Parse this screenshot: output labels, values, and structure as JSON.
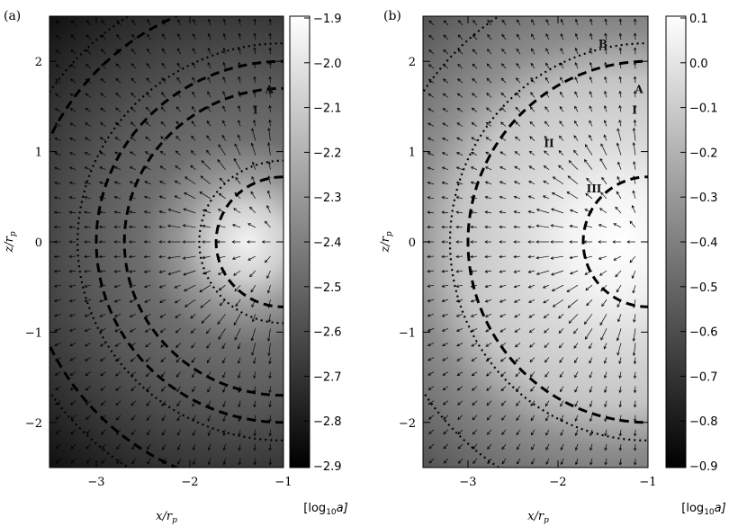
{
  "chart_data": [
    {
      "type": "heatmap",
      "panel_label": "(a)",
      "xlabel": "x/r",
      "xlabel_sub": "p",
      "ylabel": "z/r",
      "ylabel_sub": "p",
      "xlim": [
        -3.5,
        -1
      ],
      "ylim": [
        -2.5,
        2.5
      ],
      "xticks": [
        -3,
        -2,
        -1
      ],
      "yticks": [
        -2,
        -1,
        0,
        1,
        2
      ],
      "colorbar": {
        "label": "[log",
        "label_sub": "10",
        "label_tail": "a]",
        "min": -2.9,
        "max": -1.9,
        "ticks": [
          "-1.9",
          "-2.0",
          "-2.1",
          "-2.2",
          "-2.3",
          "-2.4",
          "-2.5",
          "-2.6",
          "-2.7",
          "-2.8",
          "-2.9"
        ]
      },
      "region_labels": [
        {
          "text": "A",
          "x": -1.15,
          "z": 1.65
        },
        {
          "text": "I",
          "x": -1.3,
          "z": 1.42
        }
      ],
      "colors": {
        "ring": "#000000",
        "high": "#f4f4f4",
        "low": "#000000"
      }
    },
    {
      "type": "heatmap",
      "panel_label": "(b)",
      "xlabel": "x/r",
      "xlabel_sub": "p",
      "ylabel": "z/r",
      "ylabel_sub": "p",
      "xlim": [
        -3.5,
        -1
      ],
      "ylim": [
        -2.5,
        2.5
      ],
      "xticks": [
        -3,
        -2,
        -1
      ],
      "yticks": [
        -2,
        -1,
        0,
        1,
        2
      ],
      "colorbar": {
        "label": "[log",
        "label_sub": "10",
        "label_tail": "a]",
        "min": -0.9,
        "max": 0.1,
        "ticks": [
          "0.1",
          "0.0",
          "-0.1",
          "-0.2",
          "-0.3",
          "-0.4",
          "-0.5",
          "-0.6",
          "-0.7",
          "-0.8",
          "-0.9"
        ]
      },
      "region_labels": [
        {
          "text": "B",
          "x": -1.5,
          "z": 2.15
        },
        {
          "text": "A",
          "x": -1.1,
          "z": 1.65
        },
        {
          "text": "I",
          "x": -1.15,
          "z": 1.42
        },
        {
          "text": "II",
          "x": -2.1,
          "z": 1.05
        },
        {
          "text": "III",
          "x": -1.6,
          "z": 0.55
        }
      ],
      "colors": {
        "ring": "#000000",
        "high": "#ffffff",
        "low": "#202020"
      }
    }
  ]
}
